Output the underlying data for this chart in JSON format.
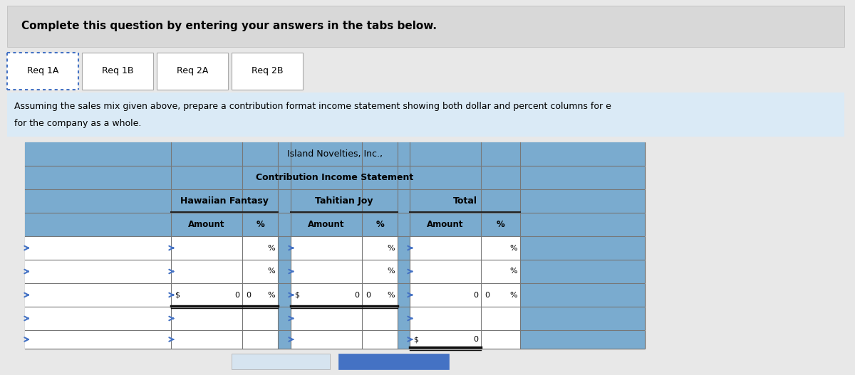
{
  "bg_color": "#e8e8e8",
  "header_text": "Complete this question by entering your answers in the tabs below.",
  "tabs": [
    "Req 1A",
    "Req 1B",
    "Req 2A",
    "Req 2B"
  ],
  "table_title1": "Island Novelties, Inc.,",
  "table_title2": "Contribution Income Statement",
  "col_group1": "Hawaiian Fantasy",
  "col_group2": "Tahitian Joy",
  "col_group3": "Total",
  "table_blue": "#6699cc",
  "table_blue_light": "#7aabcf",
  "header_gray": "#d8d8d8",
  "instr_blue": "#daeaf6",
  "nav_left_color": "#d6e4f0",
  "nav_right_color": "#4472c4",
  "white": "#ffffff",
  "row_label_blue": "#4472c4"
}
